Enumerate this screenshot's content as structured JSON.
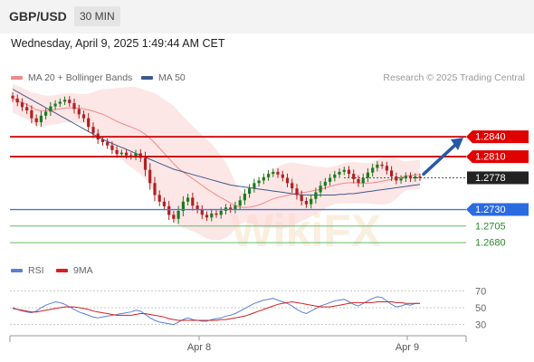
{
  "header": {
    "symbol": "GBP/USD",
    "timeframe": "30 MIN"
  },
  "datetime": "Wednesday, April 9, 2025 1:49:44 AM CET",
  "watermark": "WikiFX",
  "main_legend": [
    {
      "label": "MA 20 + Bollinger Bands",
      "color": "#f08a8a"
    },
    {
      "label": "MA 50",
      "color": "#3c5a8c"
    }
  ],
  "credit": "Research © 2025 Trading Central",
  "rsi_legend": [
    {
      "label": "RSI",
      "color": "#5b7fd6"
    },
    {
      "label": "9MA",
      "color": "#d42020"
    }
  ],
  "chart_data": {
    "type": "candlestick",
    "price_range": [
      1.265,
      1.291
    ],
    "levels": [
      {
        "value": 1.284,
        "label": "1.2840",
        "style": "resistance",
        "color": "#cc0000",
        "label_bg": "#e00000"
      },
      {
        "value": 1.281,
        "label": "1.2810",
        "style": "resistance",
        "color": "#cc0000",
        "label_bg": "#e00000"
      },
      {
        "value": 1.2778,
        "label": "1.2778",
        "style": "current",
        "color": "#555555",
        "label_bg": "#222222"
      },
      {
        "value": 1.273,
        "label": "1.2730",
        "style": "pivot",
        "color": "#4477dd",
        "label_bg": "#2a6be0"
      },
      {
        "value": 1.2705,
        "label": "1.2705",
        "style": "support",
        "color": "#66bb66",
        "label_bg": ""
      },
      {
        "value": 1.268,
        "label": "1.2680",
        "style": "support",
        "color": "#66bb66",
        "label_bg": ""
      }
    ],
    "x_labels": [
      "Apr 8",
      "Apr 9"
    ],
    "closes": [
      1.2898,
      1.2892,
      1.2885,
      1.288,
      1.2868,
      1.2862,
      1.2872,
      1.2878,
      1.2886,
      1.289,
      1.2893,
      1.2896,
      1.2891,
      1.2882,
      1.2874,
      1.2868,
      1.2855,
      1.2845,
      1.2836,
      1.2832,
      1.2827,
      1.282,
      1.2814,
      1.2816,
      1.2812,
      1.281,
      1.2815,
      1.2808,
      1.279,
      1.277,
      1.2752,
      1.2742,
      1.2735,
      1.2722,
      1.2716,
      1.2728,
      1.2742,
      1.2748,
      1.2736,
      1.273,
      1.2722,
      1.2718,
      1.2724,
      1.2722,
      1.2728,
      1.2733,
      1.273,
      1.2736,
      1.2744,
      1.2754,
      1.2762,
      1.277,
      1.2774,
      1.2779,
      1.2784,
      1.2787,
      1.2783,
      1.2778,
      1.277,
      1.2762,
      1.2752,
      1.2743,
      1.2738,
      1.2746,
      1.2756,
      1.2766,
      1.2772,
      1.2778,
      1.2783,
      1.2787,
      1.279,
      1.2784,
      1.2776,
      1.277,
      1.2778,
      1.2786,
      1.2793,
      1.2798,
      1.2796,
      1.2789,
      1.278,
      1.2774,
      1.2777,
      1.2781,
      1.2777,
      1.278,
      1.2778
    ],
    "ma50": [
      1.2912,
      1.2908,
      1.2904,
      1.29,
      1.2896,
      1.2892,
      1.2888,
      1.2884,
      1.288,
      1.2876,
      1.2872,
      1.2868,
      1.2864,
      1.286,
      1.2856,
      1.2852,
      1.2848,
      1.2844,
      1.284,
      1.2836,
      1.2833,
      1.283,
      1.2827,
      1.2824,
      1.2821,
      1.2818,
      1.2815,
      1.2812,
      1.2809,
      1.2806,
      1.2803,
      1.28,
      1.2797,
      1.2794,
      1.2791,
      1.2789,
      1.2787,
      1.2785,
      1.2783,
      1.2781,
      1.2779,
      1.2777,
      1.2775,
      1.2773,
      1.2771,
      1.2769,
      1.2767,
      1.2766,
      1.2765,
      1.2764,
      1.2763,
      1.2762,
      1.2761,
      1.276,
      1.2759,
      1.2758,
      1.2757,
      1.2756,
      1.2755,
      1.2754,
      1.2753,
      1.2752,
      1.2752,
      1.2752,
      1.2752,
      1.2752,
      1.2752,
      1.2752,
      1.2752,
      1.2753,
      1.2753,
      1.2754,
      1.2754,
      1.2755,
      1.2756,
      1.2757,
      1.2758,
      1.2759,
      1.276,
      1.2761,
      1.2762,
      1.2763,
      1.2764,
      1.2765,
      1.2766,
      1.2767,
      1.2768
    ],
    "rsi_axis": [
      70,
      50,
      30
    ],
    "rsi_range": [
      20,
      80
    ],
    "rsi": [
      50,
      48,
      46,
      45,
      44,
      46,
      50,
      53,
      55,
      57,
      56,
      54,
      51,
      48,
      45,
      43,
      41,
      39,
      38,
      39,
      40,
      41,
      42,
      43,
      44,
      45,
      47,
      46,
      42,
      38,
      35,
      33,
      32,
      31,
      30,
      33,
      36,
      38,
      36,
      35,
      34,
      34,
      36,
      37,
      38,
      40,
      41,
      43,
      46,
      49,
      52,
      55,
      57,
      59,
      60,
      61,
      59,
      57,
      55,
      52,
      48,
      45,
      43,
      46,
      49,
      52,
      54,
      56,
      58,
      59,
      60,
      57,
      54,
      52,
      55,
      58,
      61,
      63,
      62,
      58,
      54,
      51,
      52,
      54,
      53,
      55,
      55
    ],
    "rsi_ma": [
      49,
      48,
      47,
      46,
      45,
      45,
      46,
      47,
      48,
      49,
      50,
      51,
      51,
      51,
      50,
      49,
      48,
      46,
      45,
      44,
      43,
      42,
      41,
      41,
      41,
      41,
      42,
      43,
      43,
      42,
      41,
      40,
      39,
      37,
      36,
      35,
      35,
      35,
      35,
      35,
      35,
      35,
      35,
      35,
      36,
      36,
      37,
      38,
      39,
      40,
      42,
      44,
      46,
      48,
      50,
      52,
      54,
      55,
      56,
      57,
      56,
      55,
      54,
      53,
      52,
      51,
      51,
      51,
      52,
      53,
      54,
      55,
      56,
      56,
      56,
      56,
      56,
      57,
      57,
      57,
      57,
      56,
      56,
      55,
      55,
      55,
      55
    ]
  }
}
